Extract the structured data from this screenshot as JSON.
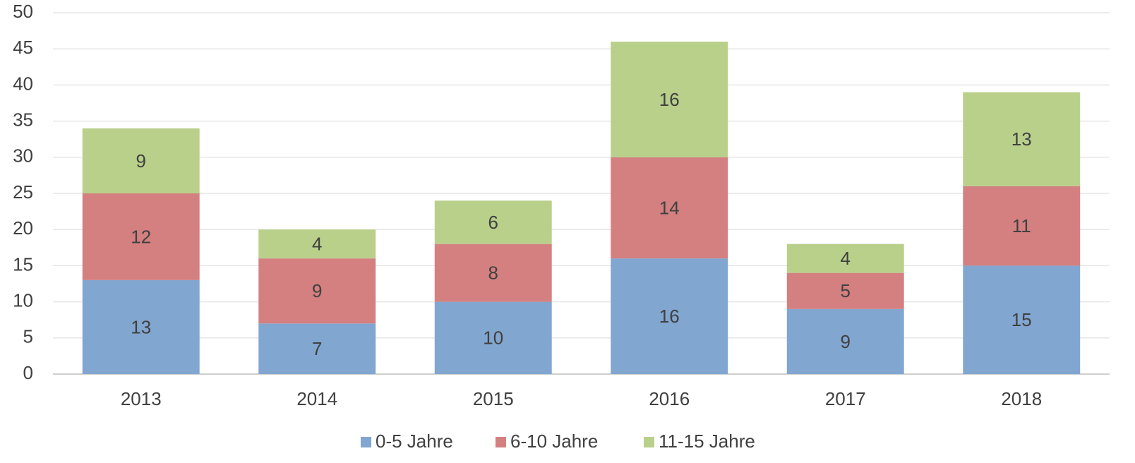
{
  "chart_data": {
    "type": "stacked_bar",
    "categories": [
      "2013",
      "2014",
      "2015",
      "2016",
      "2017",
      "2018"
    ],
    "series": [
      {
        "name": "0-5 Jahre",
        "color": "#81a6d0",
        "values": [
          13,
          7,
          10,
          16,
          9,
          15
        ]
      },
      {
        "name": "6-10 Jahre",
        "color": "#d48080",
        "values": [
          12,
          9,
          8,
          14,
          5,
          11
        ]
      },
      {
        "name": "11-15 Jahre",
        "color": "#b9d08b",
        "values": [
          9,
          4,
          6,
          16,
          4,
          13
        ]
      }
    ],
    "ylim": [
      0,
      50
    ],
    "yticks": [
      0,
      5,
      10,
      15,
      20,
      25,
      30,
      35,
      40,
      45,
      50
    ],
    "grid": true,
    "legend": "bottom"
  }
}
